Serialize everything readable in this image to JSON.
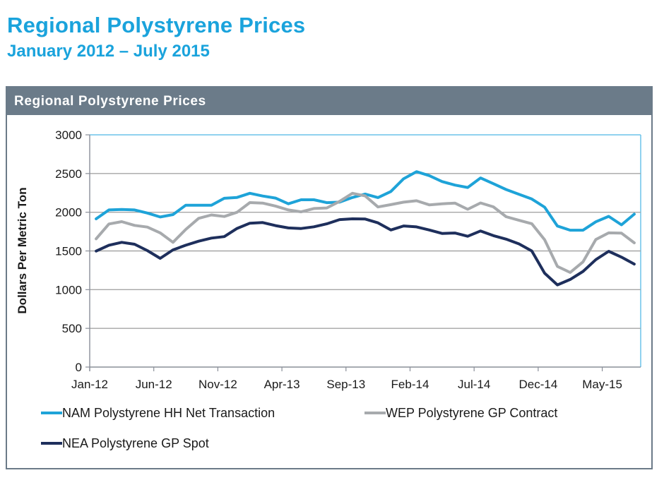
{
  "header": {
    "title": "Regional Polystyrene Prices",
    "subtitle": "January 2012 – July 2015"
  },
  "panel": {
    "title": "Regional Polystyrene Prices"
  },
  "colors": {
    "title": "#1aa3dc",
    "panel_header": "#6b7b89",
    "nam": "#1ea3d8",
    "wep": "#a7aaad",
    "nea": "#1e2f5c",
    "grid": "#a6a6a6",
    "plot_border": "#6cc3ea"
  },
  "chart_data": {
    "type": "line",
    "title": "Regional Polystyrene Prices",
    "xlabel": "",
    "ylabel": "Dollars Per Metric Ton",
    "ylim": [
      0,
      3000
    ],
    "yticks": [
      0,
      500,
      1000,
      1500,
      2000,
      2500,
      3000
    ],
    "grid": true,
    "legend_position": "bottom",
    "x": [
      "Jan-12",
      "Feb-12",
      "Mar-12",
      "Apr-12",
      "May-12",
      "Jun-12",
      "Jul-12",
      "Aug-12",
      "Sep-12",
      "Oct-12",
      "Nov-12",
      "Dec-12",
      "Jan-13",
      "Feb-13",
      "Mar-13",
      "Apr-13",
      "May-13",
      "Jun-13",
      "Jul-13",
      "Aug-13",
      "Sep-13",
      "Oct-13",
      "Nov-13",
      "Dec-13",
      "Jan-14",
      "Feb-14",
      "Mar-14",
      "Apr-14",
      "May-14",
      "Jun-14",
      "Jul-14",
      "Aug-14",
      "Sep-14",
      "Oct-14",
      "Nov-14",
      "Dec-14",
      "Jan-15",
      "Feb-15",
      "Mar-15",
      "Apr-15",
      "May-15",
      "Jun-15",
      "Jul-15"
    ],
    "xtick_labels": [
      "Jan-12",
      "Jun-12",
      "Nov-12",
      "Apr-13",
      "Sep-13",
      "Feb-14",
      "Jul-14",
      "Dec-14",
      "May-15"
    ],
    "series": [
      {
        "name": "NAM Polystyrene HH Net Transaction",
        "color": "#1ea3d8",
        "values": [
          1915,
          2030,
          2036,
          2030,
          1990,
          1939,
          1970,
          2091,
          2091,
          2090,
          2180,
          2191,
          2245,
          2209,
          2183,
          2109,
          2161,
          2161,
          2124,
          2130,
          2190,
          2235,
          2189,
          2268,
          2433,
          2524,
          2473,
          2396,
          2351,
          2320,
          2443,
          2369,
          2293,
          2232,
          2171,
          2065,
          1822,
          1768,
          1768,
          1877,
          1947,
          1837,
          1975
        ]
      },
      {
        "name": "WEP Polystyrene GP Contract",
        "color": "#a7aaad",
        "values": [
          1657,
          1848,
          1878,
          1830,
          1808,
          1733,
          1611,
          1778,
          1921,
          1965,
          1945,
          2000,
          2125,
          2118,
          2080,
          2030,
          2005,
          2048,
          2055,
          2140,
          2245,
          2210,
          2068,
          2098,
          2130,
          2148,
          2095,
          2108,
          2118,
          2038,
          2120,
          2070,
          1942,
          1896,
          1852,
          1645,
          1300,
          1222,
          1360,
          1648,
          1733,
          1730,
          1605
        ]
      },
      {
        "name": "NEA Polystyrene GP Spot",
        "color": "#1e2f5c",
        "values": [
          1498,
          1574,
          1611,
          1587,
          1505,
          1404,
          1514,
          1574,
          1626,
          1666,
          1685,
          1791,
          1858,
          1867,
          1827,
          1797,
          1790,
          1812,
          1850,
          1905,
          1915,
          1912,
          1863,
          1771,
          1823,
          1811,
          1771,
          1726,
          1732,
          1690,
          1758,
          1698,
          1652,
          1591,
          1500,
          1213,
          1061,
          1132,
          1236,
          1388,
          1495,
          1420,
          1330
        ]
      }
    ]
  }
}
